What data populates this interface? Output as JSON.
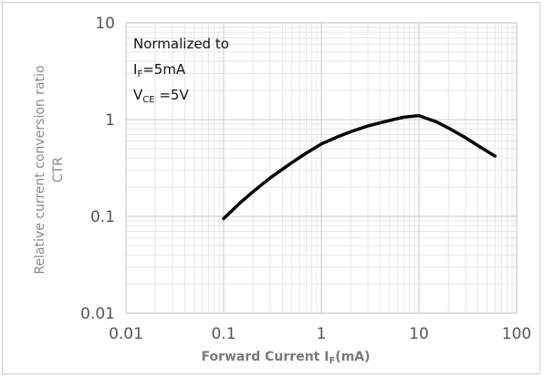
{
  "chart_data": {
    "type": "line",
    "title": "",
    "xlabel": {
      "main": "Forward Current I",
      "sub": "F",
      "unit": "(mA)"
    },
    "ylabel": {
      "line1": "Relative current conversion ratio",
      "line2": "CTR"
    },
    "xscale": "log",
    "yscale": "log",
    "xlim": [
      0.01,
      100
    ],
    "ylim": [
      0.01,
      10
    ],
    "x_ticks": [
      "0.01",
      "0.1",
      "1",
      "10",
      "100"
    ],
    "y_ticks": [
      "10",
      "1",
      "0.1",
      "0.01"
    ],
    "grid": true,
    "legend": "none",
    "annotations": [
      {
        "text": "Normalized to"
      },
      {
        "main": "I",
        "sub": "F",
        "rest": "=5mA"
      },
      {
        "main": "V",
        "sub": "CE",
        "rest": " =5V"
      }
    ],
    "series": [
      {
        "color": "#000000",
        "x": [
          0.1,
          0.15,
          0.2,
          0.3,
          0.5,
          0.7,
          1,
          1.5,
          2,
          3,
          5,
          7,
          10,
          15,
          20,
          30,
          40,
          60
        ],
        "y": [
          0.095,
          0.14,
          0.18,
          0.25,
          0.36,
          0.45,
          0.56,
          0.67,
          0.75,
          0.86,
          0.98,
          1.06,
          1.1,
          0.95,
          0.82,
          0.65,
          0.54,
          0.42
        ]
      }
    ]
  }
}
